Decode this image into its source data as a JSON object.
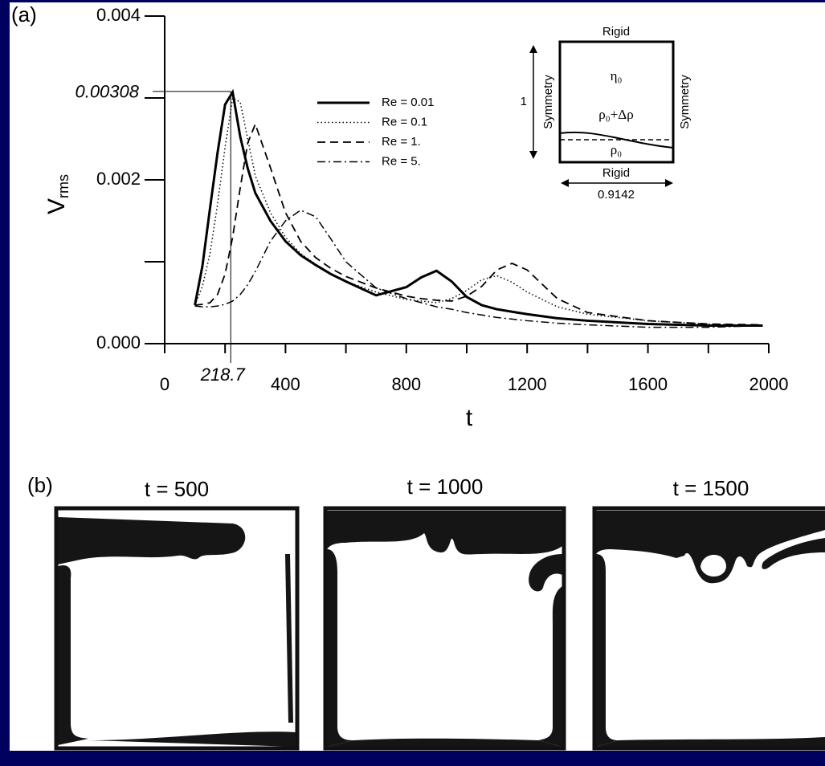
{
  "chart_data": {
    "type": "line",
    "panel_label": "(a)",
    "x_label": "t",
    "y_label": "V",
    "y_label_sub": "rms",
    "xlim": [
      0,
      2000
    ],
    "ylim": [
      0,
      0.004
    ],
    "xticks": [
      0,
      400,
      800,
      1200,
      1600,
      2000
    ],
    "xminor_ticks": [
      200,
      600,
      1000,
      1400,
      1800
    ],
    "yticks": [
      {
        "value": 0,
        "label": "0.000"
      },
      0.002,
      {
        "value": 0.004,
        "label": "0.004"
      }
    ],
    "yminor_ticks": [
      0.001,
      0.003
    ],
    "grid": false,
    "legend": "top-center",
    "annotation": {
      "x": 218.7,
      "y": 0.00308,
      "x_label": "218.7",
      "y_label": "0.00308"
    },
    "x": [
      100,
      125,
      150,
      175,
      200,
      225,
      250,
      275,
      300,
      350,
      400,
      450,
      500,
      550,
      600,
      700,
      800,
      850,
      900,
      950,
      1000,
      1050,
      1100,
      1150,
      1200,
      1300,
      1400,
      1600,
      1800,
      1980
    ],
    "series": [
      {
        "name": "Re = 0.01",
        "color": "#000000",
        "dash": "solid",
        "values": [
          0.00047,
          0.00095,
          0.00165,
          0.00233,
          0.00292,
          0.00307,
          0.00253,
          0.00214,
          0.00184,
          0.0015,
          0.00125,
          0.00108,
          0.00096,
          0.00085,
          0.00076,
          0.00059,
          0.00069,
          0.00081,
          0.00089,
          0.00076,
          0.00057,
          0.00047,
          0.00042,
          0.00039,
          0.00036,
          0.00031,
          0.00028,
          0.00024,
          0.00022,
          0.00022
        ]
      },
      {
        "name": "Re = 0.1",
        "color": "#000000",
        "dash": "dotted",
        "values": [
          0.00047,
          0.0007,
          0.0011,
          0.0017,
          0.0024,
          0.003,
          0.00295,
          0.0025,
          0.00205,
          0.0016,
          0.0013,
          0.0011,
          0.00097,
          0.00086,
          0.00076,
          0.00063,
          0.00054,
          0.00052,
          0.0005,
          0.00055,
          0.00065,
          0.00078,
          0.00083,
          0.00075,
          0.00063,
          0.00045,
          0.00036,
          0.00028,
          0.00024,
          0.00022
        ]
      },
      {
        "name": "Re = 1.",
        "color": "#000000",
        "dash": "dashed",
        "values": [
          0.00047,
          0.00048,
          0.0005,
          0.0006,
          0.00085,
          0.0013,
          0.0019,
          0.00245,
          0.00268,
          0.00215,
          0.0016,
          0.00125,
          0.00105,
          0.00092,
          0.00082,
          0.00068,
          0.00058,
          0.00055,
          0.00053,
          0.00052,
          0.00058,
          0.0007,
          0.0009,
          0.00098,
          0.0009,
          0.00055,
          0.00038,
          0.00028,
          0.00024,
          0.00023
        ]
      },
      {
        "name": "Re = 5.",
        "color": "#000000",
        "dash": "dashdot",
        "values": [
          0.00046,
          0.00045,
          0.00045,
          0.00046,
          0.00048,
          0.00052,
          0.0006,
          0.00072,
          0.00088,
          0.00125,
          0.0015,
          0.00163,
          0.00155,
          0.00128,
          0.001,
          0.00068,
          0.00055,
          0.0005,
          0.00045,
          0.00042,
          0.00038,
          0.00035,
          0.00032,
          0.0003,
          0.00028,
          0.00025,
          0.00023,
          0.0002,
          0.0002,
          0.00022
        ]
      }
    ]
  },
  "inset": {
    "top": "Rigid",
    "bottom": "Rigid",
    "left": "Symmetry",
    "right": "Symmetry",
    "upper_fluid": "η₀",
    "interface": "ρ₀+Δρ",
    "lower_fluid": "ρ₀",
    "height": "1",
    "width": "0.9142"
  },
  "panel_b": {
    "label": "(b)",
    "titles": [
      "t = 500",
      "t = 1000",
      "t = 1500"
    ]
  }
}
